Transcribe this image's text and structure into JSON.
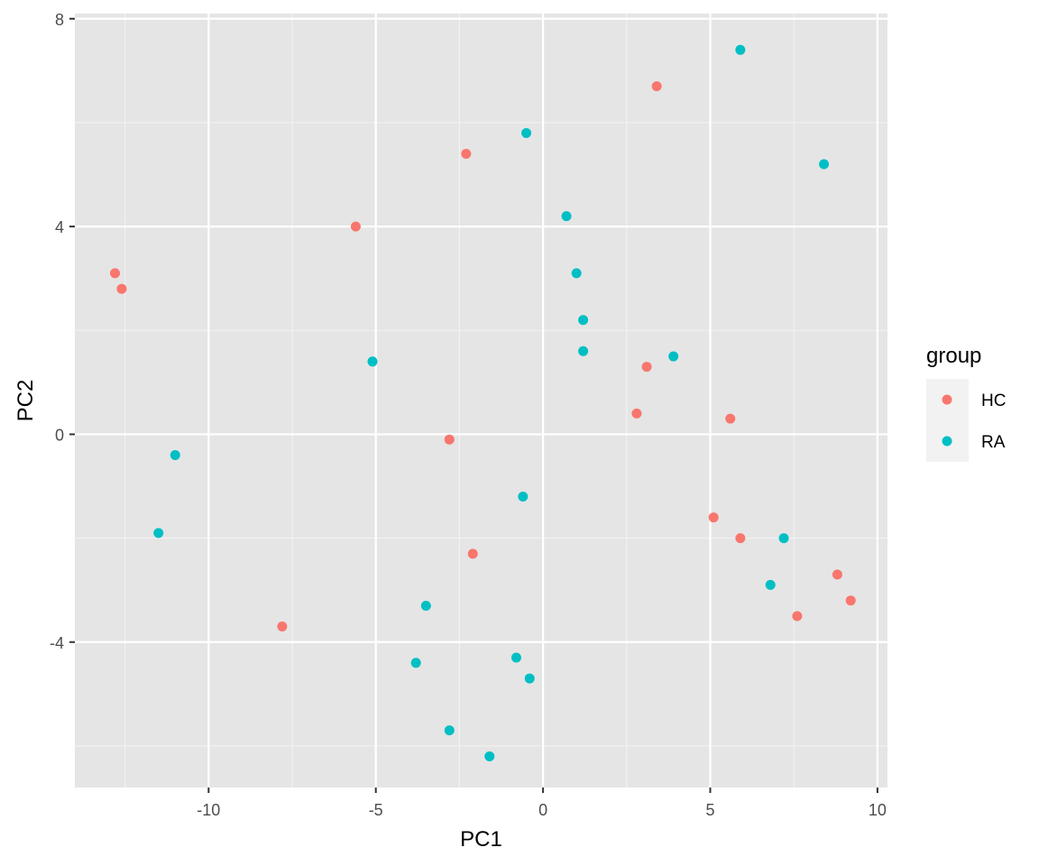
{
  "chart_data": {
    "type": "scatter",
    "title": "",
    "xlabel": "PC1",
    "ylabel": "PC2",
    "xlim": [
      -14,
      10.3
    ],
    "ylim": [
      -6.8,
      8.1
    ],
    "x_ticks": [
      -10,
      -5,
      0,
      5,
      10
    ],
    "x_tick_labels": [
      "-10",
      "-5",
      "0",
      "5",
      "10"
    ],
    "y_ticks": [
      -4,
      0,
      4,
      8
    ],
    "y_tick_labels": [
      "-4",
      "0",
      "4",
      "8"
    ],
    "x_minor_ticks": [
      -12.5,
      -7.5,
      -2.5,
      2.5,
      7.5
    ],
    "y_minor_ticks": [
      -6,
      -2,
      2,
      6
    ],
    "grid": true,
    "background": "#e5e5e5",
    "legend": {
      "title": "group",
      "placement": "right"
    },
    "series": [
      {
        "name": "HC",
        "color": "#f8766d",
        "points": [
          [
            3.4,
            6.7
          ],
          [
            -2.3,
            5.4
          ],
          [
            -5.6,
            4.0
          ],
          [
            -12.8,
            3.1
          ],
          [
            -12.6,
            2.8
          ],
          [
            3.1,
            1.3
          ],
          [
            2.8,
            0.4
          ],
          [
            5.6,
            0.3
          ],
          [
            -2.8,
            -0.1
          ],
          [
            5.1,
            -1.6
          ],
          [
            5.9,
            -2.0
          ],
          [
            -2.1,
            -2.3
          ],
          [
            8.8,
            -2.7
          ],
          [
            9.2,
            -3.2
          ],
          [
            7.6,
            -3.5
          ],
          [
            -7.8,
            -3.7
          ]
        ]
      },
      {
        "name": "RA",
        "color": "#00bfc4",
        "points": [
          [
            5.9,
            7.4
          ],
          [
            -0.5,
            5.8
          ],
          [
            8.4,
            5.2
          ],
          [
            0.7,
            4.2
          ],
          [
            1.0,
            3.1
          ],
          [
            1.2,
            2.2
          ],
          [
            1.2,
            1.6
          ],
          [
            3.9,
            1.5
          ],
          [
            -5.1,
            1.4
          ],
          [
            -11.0,
            -0.4
          ],
          [
            -0.6,
            -1.2
          ],
          [
            -11.5,
            -1.9
          ],
          [
            7.2,
            -2.0
          ],
          [
            6.8,
            -2.9
          ],
          [
            -3.5,
            -3.3
          ],
          [
            -3.8,
            -4.4
          ],
          [
            -0.8,
            -4.3
          ],
          [
            -0.4,
            -4.7
          ],
          [
            -2.8,
            -5.7
          ],
          [
            -1.6,
            -6.2
          ]
        ]
      }
    ]
  }
}
